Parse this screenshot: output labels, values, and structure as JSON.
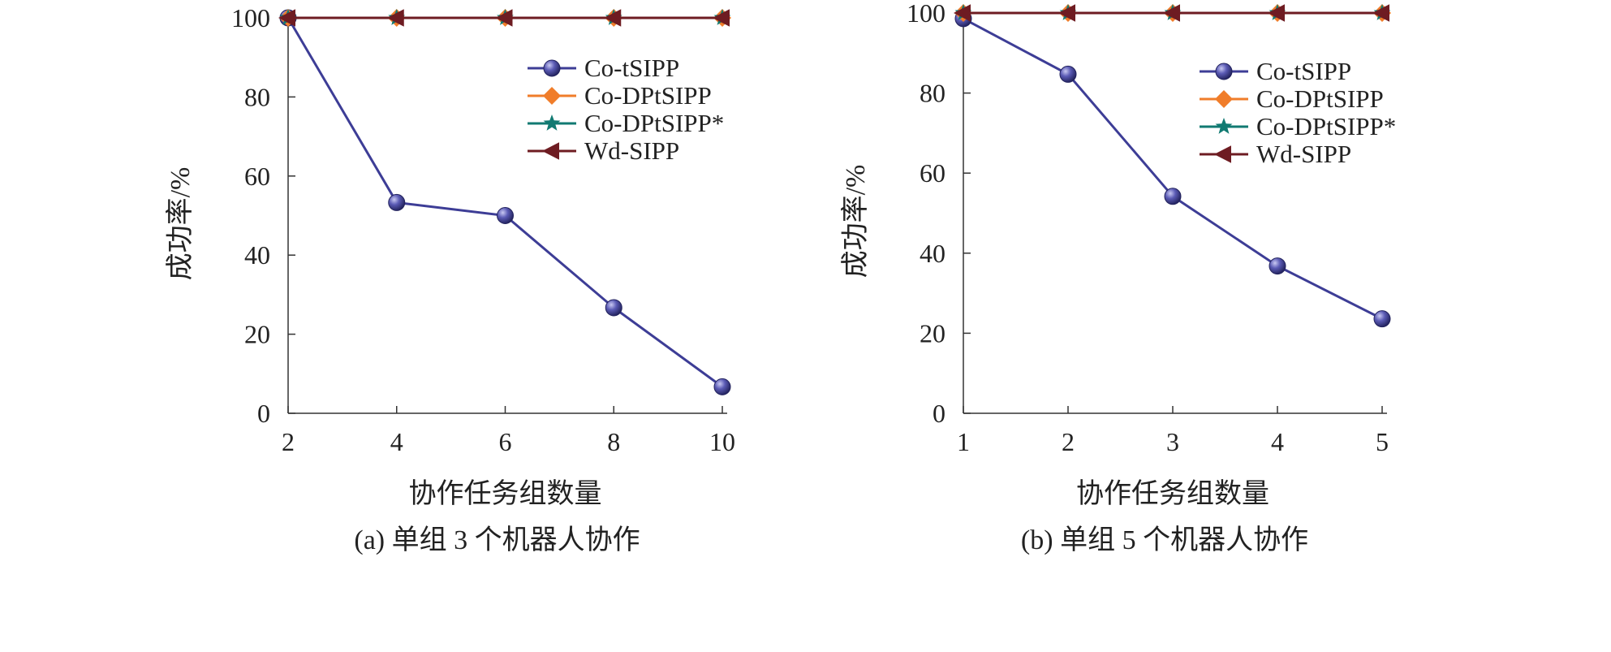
{
  "colors": {
    "Co-tSIPP": "#3d3d96",
    "Co-DPtSIPP": "#f07d2a",
    "Co-DPtSIPP*": "#117a72",
    "Wd-SIPP": "#6e1c22",
    "axis": "#333333"
  },
  "chart_data": [
    {
      "type": "line",
      "caption": "(a) 单组 3 个机器人协作",
      "xlabel": "协作任务组数量",
      "ylabel": "成功率/%",
      "x": [
        2,
        4,
        6,
        8,
        10
      ],
      "xticks": [
        "2",
        "4",
        "6",
        "8",
        "10"
      ],
      "xlim": [
        2,
        10
      ],
      "yticks": [
        "0",
        "20",
        "40",
        "60",
        "80",
        "100"
      ],
      "ylim": [
        0,
        100
      ],
      "grid": false,
      "legend_position": "top-right",
      "series": [
        {
          "name": "Co-tSIPP",
          "marker": "sphere",
          "values": [
            100,
            53.3,
            50,
            26.7,
            6.7
          ]
        },
        {
          "name": "Co-DPtSIPP",
          "marker": "diamond",
          "values": [
            100,
            100,
            100,
            100,
            100
          ]
        },
        {
          "name": "Co-DPtSIPP*",
          "marker": "star",
          "values": [
            100,
            100,
            100,
            100,
            100
          ]
        },
        {
          "name": "Wd-SIPP",
          "marker": "triangle-left",
          "values": [
            100,
            100,
            100,
            100,
            100
          ]
        }
      ]
    },
    {
      "type": "line",
      "caption": "(b) 单组 5 个机器人协作",
      "xlabel": "协作任务组数量",
      "ylabel": "成功率/%",
      "x": [
        1,
        2,
        3,
        4,
        5
      ],
      "xticks": [
        "1",
        "2",
        "3",
        "4",
        "5"
      ],
      "xlim": [
        1,
        5
      ],
      "yticks": [
        "0",
        "20",
        "40",
        "60",
        "80",
        "100"
      ],
      "ylim": [
        0,
        100
      ],
      "grid": false,
      "legend_position": "top-right",
      "series": [
        {
          "name": "Co-tSIPP",
          "marker": "sphere",
          "values": [
            98.6,
            84.7,
            54.2,
            36.8,
            23.6
          ]
        },
        {
          "name": "Co-DPtSIPP",
          "marker": "diamond",
          "values": [
            100,
            100,
            100,
            100,
            100
          ]
        },
        {
          "name": "Co-DPtSIPP*",
          "marker": "star",
          "values": [
            100,
            100,
            100,
            100,
            100
          ]
        },
        {
          "name": "Wd-SIPP",
          "marker": "triangle-left",
          "values": [
            100,
            100,
            100,
            100,
            100
          ]
        }
      ]
    }
  ]
}
